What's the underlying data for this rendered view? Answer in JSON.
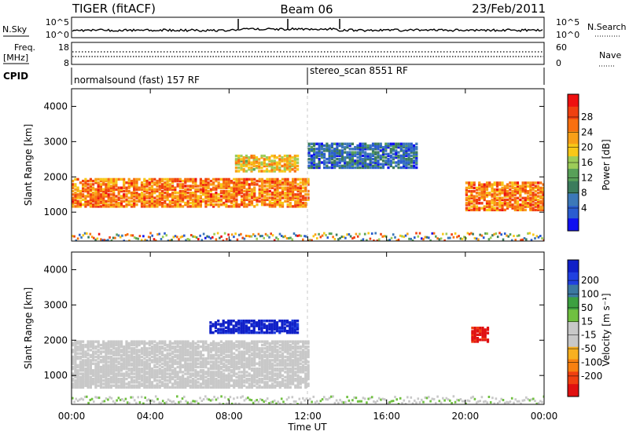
{
  "header": {
    "station": "TIGER (fitACF)",
    "beam": "Beam 06",
    "date": "23/Feb/2011"
  },
  "small_panels": {
    "nsky_label": "N.Sky",
    "nsky_ticks": [
      "10^5",
      "10^0"
    ],
    "nsearch_label": "N.Search",
    "nsearch_ticks": [
      "10^5",
      "10^0"
    ],
    "freq_label_1": "Freq.",
    "freq_label_2": "[MHz]",
    "freq_ticks": [
      "18",
      "8"
    ],
    "nave_label": "Nave",
    "nave_ticks": [
      "60",
      "0"
    ],
    "cpid_label": "CPID",
    "cpid_segments": [
      {
        "label": "normalsound (fast) 157 RF",
        "start_hour": 0
      },
      {
        "label": "stereo_scan 8551 RF",
        "start_hour": 12
      }
    ]
  },
  "chart_data": [
    {
      "type": "heatmap",
      "panel": "power",
      "ylabel": "Slant Range [km]",
      "ylim": [
        180,
        4500
      ],
      "yticks": [
        "1000",
        "2000",
        "3000",
        "4000"
      ],
      "xlim_hours": [
        0,
        24
      ],
      "colorbar": {
        "label": "Power [dB]",
        "ticks": [
          "28",
          "24",
          "20",
          "16",
          "12",
          "8",
          "4"
        ],
        "colors": [
          "#ee1010",
          "#f04010",
          "#f87010",
          "#f8a018",
          "#f8c818",
          "#9ccc58",
          "#58a058",
          "#3c7c5c",
          "#3c78b8",
          "#2a5cd0",
          "#1010f0"
        ]
      },
      "echo_regions": [
        {
          "desc": "band",
          "hours": [
            0,
            12
          ],
          "range_km": [
            1200,
            2000
          ],
          "db": 24
        },
        {
          "desc": "upper",
          "hours": [
            8.3,
            11.5
          ],
          "range_km": [
            2200,
            2650
          ],
          "db": 20
        },
        {
          "desc": "upper2",
          "hours": [
            12,
            17.5
          ],
          "range_km": [
            2300,
            3000
          ],
          "db": 8
        },
        {
          "desc": "tail",
          "hours": [
            20,
            24
          ],
          "range_km": [
            1100,
            1900
          ],
          "db": 24
        }
      ]
    },
    {
      "type": "heatmap",
      "panel": "velocity",
      "ylabel": "Slant Range [km]",
      "ylim": [
        180,
        4500
      ],
      "yticks": [
        "1000",
        "2000",
        "3000",
        "4000"
      ],
      "xlim_hours": [
        0,
        24
      ],
      "xticks": [
        "00:00",
        "04:00",
        "08:00",
        "12:00",
        "16:00",
        "20:00",
        "00:00"
      ],
      "xlabel": "Time UT",
      "colorbar": {
        "label": "Velocity [m s⁻¹]",
        "ticks": [
          "200",
          "100",
          "50",
          "15",
          "-15",
          "-50",
          "-100",
          "-200"
        ],
        "colors": [
          "#1020c8",
          "#2040e0",
          "#3c78a0",
          "#3ca040",
          "#70c040",
          "#c8c8c8",
          "#c8c8c8",
          "#f8b020",
          "#f88010",
          "#f04010",
          "#e01010"
        ]
      },
      "echo_regions": [
        {
          "desc": "ground scatter",
          "hours": [
            0,
            12
          ],
          "range_km": [
            700,
            2000
          ],
          "vel": 0
        },
        {
          "desc": "blue",
          "hours": [
            7,
            11.5
          ],
          "range_km": [
            2250,
            2600
          ],
          "vel": 200
        },
        {
          "desc": "red",
          "hours": [
            20.3,
            21.2
          ],
          "range_km": [
            2000,
            2400
          ],
          "vel": -200
        }
      ]
    }
  ]
}
